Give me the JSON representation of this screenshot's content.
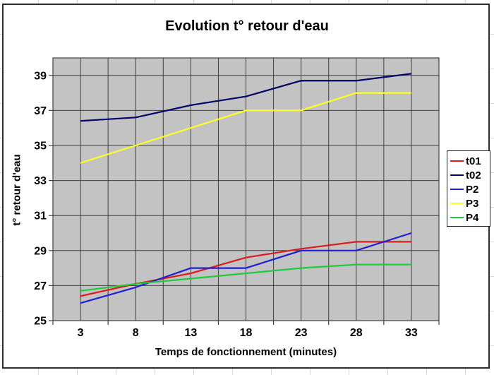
{
  "chart_data": {
    "type": "line",
    "title": "Evolution t° retour d'eau",
    "xlabel": "Temps de fonctionnement (minutes)",
    "ylabel": "t° retour d'eau",
    "categories": [
      3,
      8,
      13,
      18,
      23,
      28,
      33
    ],
    "series": [
      {
        "name": "t01",
        "color": "#dc1c1c",
        "values": [
          26.4,
          27.1,
          27.7,
          28.6,
          29.1,
          29.5,
          29.5
        ]
      },
      {
        "name": "t02",
        "color": "#000066",
        "values": [
          36.4,
          36.6,
          37.3,
          37.8,
          38.7,
          38.7,
          39.1
        ]
      },
      {
        "name": "P2",
        "color": "#1e1ed2",
        "values": [
          26.0,
          26.9,
          28.0,
          28.0,
          29.0,
          29.0,
          30.0
        ]
      },
      {
        "name": "P3",
        "color": "#ffff29",
        "values": [
          34.0,
          35.0,
          36.0,
          37.0,
          37.0,
          38.0,
          38.0
        ]
      },
      {
        "name": "P4",
        "color": "#1ecb3c",
        "values": [
          26.7,
          27.1,
          27.4,
          27.7,
          28.0,
          28.2,
          28.2
        ]
      }
    ],
    "y_ticks": [
      25,
      27,
      29,
      31,
      33,
      35,
      37,
      39
    ],
    "ylim": [
      25,
      40
    ],
    "grid": true,
    "legend_position": "right",
    "plot_bg": "#c3c3c3",
    "grid_color": "#3f3f3f"
  }
}
